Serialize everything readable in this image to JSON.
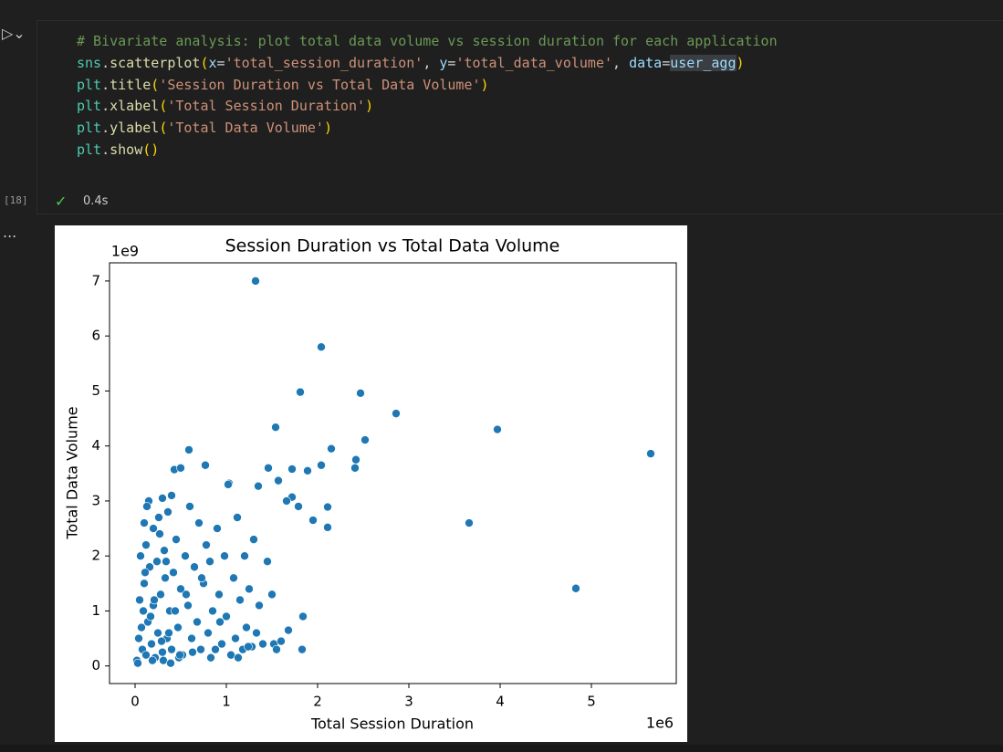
{
  "cell": {
    "code_lines": [
      [
        "# Bivariate analysis: plot total data volume vs session duration for each application"
      ],
      [
        "sns",
        ".",
        "scatterplot",
        "(",
        "x",
        "=",
        "'total_session_duration'",
        ", ",
        "y",
        "=",
        "'total_data_volume'",
        ", ",
        "data",
        "=",
        "user_agg",
        ")"
      ],
      [
        "plt",
        ".",
        "title",
        "(",
        "'Session Duration vs Total Data Volume'",
        ")"
      ],
      [
        "plt",
        ".",
        "xlabel",
        "(",
        "'Total Session Duration'",
        ")"
      ],
      [
        "plt",
        ".",
        "ylabel",
        "(",
        "'Total Data Volume'",
        ")"
      ],
      [
        "plt",
        ".",
        "show",
        "(",
        ")"
      ]
    ],
    "execution_count": "[18]",
    "duration": "0.4s",
    "output_marker": "..."
  },
  "chart_data": {
    "type": "scatter",
    "title": "Session Duration vs Total Data Volume",
    "x_label": "Total Session Duration",
    "y_label": "Total Data Volume",
    "x_offset_label": "1e6",
    "y_offset_label": "1e9",
    "color": "#1f77b4",
    "xlim": [
      -0.28,
      5.93
    ],
    "ylim": [
      -0.32,
      7.33
    ],
    "xticks": [
      0,
      1,
      2,
      3,
      4,
      5
    ],
    "yticks": [
      0,
      1,
      2,
      3,
      4,
      5,
      6,
      7
    ],
    "x": [
      1.32,
      2.04,
      1.81,
      2.47,
      2.86,
      3.97,
      1.54,
      5.65,
      3.66,
      4.83,
      2.52,
      2.15,
      2.42,
      2.41,
      2.04,
      1.89,
      1.72,
      1.46,
      1.57,
      2.11,
      2.11,
      1.95,
      1.79,
      1.72,
      1.66,
      0.59,
      0.77,
      0.43,
      1.03,
      1.35,
      1.84,
      1.68,
      1.83,
      1.52,
      0.02,
      0.04,
      0.05,
      0.06,
      0.08,
      0.1,
      0.1,
      0.12,
      0.12,
      0.14,
      0.15,
      0.16,
      0.18,
      0.2,
      0.2,
      0.22,
      0.24,
      0.25,
      0.27,
      0.28,
      0.3,
      0.3,
      0.32,
      0.33,
      0.35,
      0.36,
      0.38,
      0.4,
      0.4,
      0.42,
      0.45,
      0.47,
      0.5,
      0.5,
      0.52,
      0.55,
      0.58,
      0.6,
      0.62,
      0.65,
      0.68,
      0.7,
      0.72,
      0.75,
      0.78,
      0.8,
      0.82,
      0.85,
      0.88,
      0.9,
      0.92,
      0.95,
      0.98,
      1.0,
      1.02,
      1.05,
      1.08,
      1.1,
      1.12,
      1.15,
      1.18,
      1.2,
      1.22,
      1.25,
      1.28,
      1.3,
      1.33,
      1.36,
      1.4,
      1.45,
      1.5,
      1.55,
      1.6,
      0.03,
      0.07,
      0.11,
      0.13,
      0.17,
      0.21,
      0.26,
      0.31,
      0.34,
      0.37,
      0.44,
      0.48,
      0.56,
      0.63,
      0.73,
      0.83,
      0.93,
      1.13,
      1.24,
      0.09,
      0.19,
      0.29,
      0.39,
      0.49
    ],
    "y": [
      7.0,
      5.8,
      4.98,
      4.96,
      4.59,
      4.3,
      4.34,
      3.86,
      2.6,
      1.41,
      4.11,
      3.95,
      3.75,
      3.6,
      3.65,
      3.55,
      3.58,
      3.6,
      3.37,
      2.89,
      2.52,
      2.65,
      2.9,
      3.07,
      3.0,
      3.93,
      3.65,
      3.57,
      3.32,
      3.27,
      0.9,
      0.65,
      0.3,
      0.4,
      0.1,
      0.5,
      1.2,
      2.0,
      0.3,
      2.6,
      1.5,
      0.2,
      2.2,
      0.8,
      3.0,
      1.8,
      0.4,
      2.5,
      1.1,
      0.15,
      1.9,
      0.6,
      2.4,
      1.3,
      3.05,
      0.25,
      2.1,
      1.6,
      0.5,
      2.8,
      1.0,
      3.1,
      0.3,
      1.7,
      2.3,
      0.7,
      3.6,
      1.4,
      0.2,
      2.0,
      1.1,
      2.9,
      0.5,
      1.8,
      0.8,
      2.6,
      0.3,
      1.5,
      2.2,
      0.6,
      1.9,
      1.0,
      0.3,
      2.5,
      1.3,
      0.4,
      2.0,
      0.9,
      3.3,
      0.2,
      1.6,
      0.5,
      2.7,
      1.2,
      0.3,
      2.0,
      0.7,
      1.4,
      0.35,
      2.3,
      0.6,
      1.1,
      0.4,
      1.9,
      1.3,
      0.3,
      0.45,
      0.05,
      0.7,
      1.7,
      2.9,
      0.9,
      1.2,
      2.7,
      0.1,
      1.9,
      0.6,
      1.0,
      0.15,
      1.3,
      0.25,
      1.6,
      0.15,
      0.8,
      0.15,
      0.35,
      1.0,
      0.1,
      0.45,
      0.05,
      0.2
    ]
  }
}
